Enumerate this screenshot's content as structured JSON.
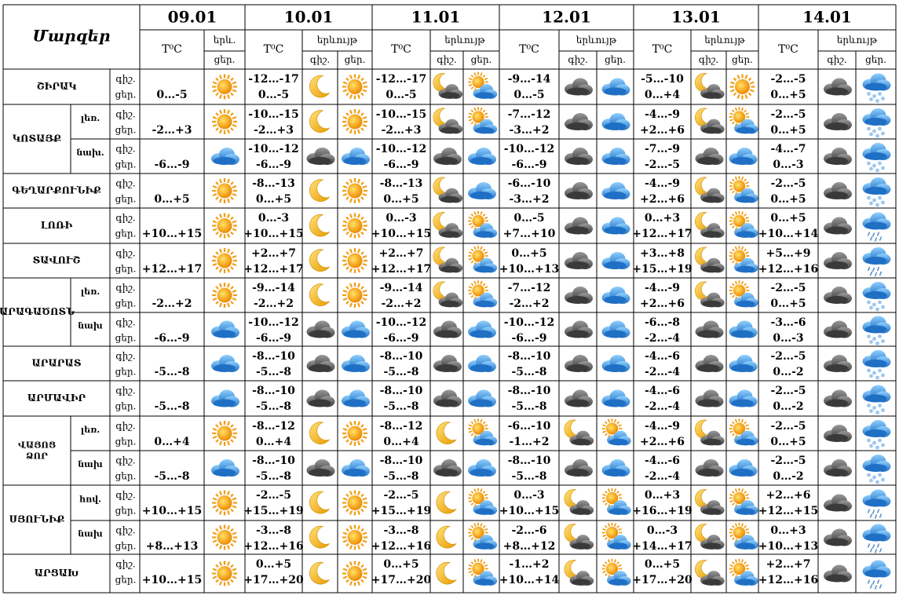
{
  "header": {
    "title": "Մարզեր",
    "dates": [
      "09.01",
      "10.01",
      "11.01",
      "12.01",
      "13.01",
      "14.01"
    ],
    "temp": "T⁰C",
    "phen_short": "երև.",
    "phen": "երևույթ",
    "night": "գիշ.",
    "day": "ցեր."
  },
  "regions": [
    {
      "name": "ՇԻՐԱԿ",
      "rows": [
        {
          "d09": "0…-5",
          "t": [
            [
              "-12…-17",
              "0…-5"
            ],
            [
              "-12…-17",
              "0…-5"
            ],
            [
              "-9…-14",
              "0…-5"
            ],
            [
              "-5…-10",
              "0…+4"
            ],
            [
              "-2…-5",
              "0…+5"
            ]
          ]
        }
      ]
    },
    {
      "name": "ԿՈՏԱՅՔ",
      "rows": [
        {
          "sub": "լեռ.",
          "d09": "-2…+3",
          "t": [
            [
              "-10…-15",
              "-2…+3"
            ],
            [
              "-10…-15",
              "-2…+3"
            ],
            [
              "-7…-12",
              "-3…+2"
            ],
            [
              "-4…-9",
              "+2…+6"
            ],
            [
              "-2…-5",
              "0…+5"
            ]
          ]
        },
        {
          "sub": "նախ.",
          "d09": "-6…-9",
          "t": [
            [
              "-10…-12",
              "-6…-9"
            ],
            [
              "-10…-12",
              "-6…-9"
            ],
            [
              "-10…-12",
              "-6…-9"
            ],
            [
              "-7…-9",
              "-2…-5"
            ],
            [
              "-4…-7",
              "0…-3"
            ]
          ]
        }
      ]
    },
    {
      "name": "ԳԵՂԱՐՔՈՒՆԻՔ",
      "rows": [
        {
          "d09": "0…+5",
          "t": [
            [
              "-8…-13",
              "0…+5"
            ],
            [
              "-8…-13",
              "0…+5"
            ],
            [
              "-6…-10",
              "-3…+2"
            ],
            [
              "-4…-9",
              "+2…+6"
            ],
            [
              "-2…-5",
              "0…+5"
            ]
          ]
        }
      ]
    },
    {
      "name": "ԼՈՌԻ",
      "rows": [
        {
          "d09": "+10…+15",
          "t": [
            [
              "0…-3",
              "+10…+15"
            ],
            [
              "0…-3",
              "+10…+15"
            ],
            [
              "0…-5",
              "+7…+10"
            ],
            [
              "0…+3",
              "+12…+17"
            ],
            [
              "0…+5",
              "+10…+14"
            ]
          ]
        }
      ]
    },
    {
      "name": "ՏԱՎՈՒՇ",
      "rows": [
        {
          "d09": "+12…+17",
          "t": [
            [
              "+2…+7",
              "+12…+17"
            ],
            [
              "+2…+7",
              "+12…+17"
            ],
            [
              "0…+5",
              "+10…+13"
            ],
            [
              "+3…+8",
              "+15…+19"
            ],
            [
              "+5…+9",
              "+12…+16"
            ]
          ]
        }
      ]
    },
    {
      "name": "ԱՐԱԳԱԾՈՏՆ",
      "rows": [
        {
          "sub": "լեռ.",
          "d09": "-2…+2",
          "t": [
            [
              "-9…-14",
              "-2…+2"
            ],
            [
              "-9…-14",
              "-2…+2"
            ],
            [
              "-7…-12",
              "-2…+2"
            ],
            [
              "-4…-9",
              "+2…+6"
            ],
            [
              "-2…-5",
              "0…+5"
            ]
          ]
        },
        {
          "sub": "նախ",
          "d09": "-6…-9",
          "t": [
            [
              "-10…-12",
              "-6…-9"
            ],
            [
              "-10…-12",
              "-6…-9"
            ],
            [
              "-10…-12",
              "-6…-9"
            ],
            [
              "-6…-8",
              "-2…-4"
            ],
            [
              "-3…-6",
              "0…-3"
            ]
          ]
        }
      ]
    },
    {
      "name": "ԱՐԱՐԱՏ",
      "rows": [
        {
          "d09": "-5…-8",
          "t": [
            [
              "-8…-10",
              "-5…-8"
            ],
            [
              "-8…-10",
              "-5…-8"
            ],
            [
              "-8…-10",
              "-5…-8"
            ],
            [
              "-4…-6",
              "-2…-4"
            ],
            [
              "-2…-5",
              "0…-2"
            ]
          ]
        }
      ]
    },
    {
      "name": "ԱՐՄԱՎԻՐ",
      "rows": [
        {
          "d09": "-5…-8",
          "t": [
            [
              "-8…-10",
              "-5…-8"
            ],
            [
              "-8…-10",
              "-5…-8"
            ],
            [
              "-8…-10",
              "-5…-8"
            ],
            [
              "-4…-6",
              "-2…-4"
            ],
            [
              "-2…-5",
              "0…-2"
            ]
          ]
        }
      ]
    },
    {
      "name": "ՎԱՅՈՑ ՁՈՐ",
      "rows": [
        {
          "sub": "լեռ.",
          "d09": "0…+4",
          "t": [
            [
              "-8…-12",
              "0…+4"
            ],
            [
              "-8…-12",
              "0…+4"
            ],
            [
              "-6…-10",
              "-1…+2"
            ],
            [
              "-4…-9",
              "+2…+6"
            ],
            [
              "-2…-5",
              "0…+5"
            ]
          ]
        },
        {
          "sub": "նախ",
          "d09": "-5…-8",
          "t": [
            [
              "-8…-10",
              "-5…-8"
            ],
            [
              "-8…-10",
              "-5…-8"
            ],
            [
              "-8…-10",
              "-5…-8"
            ],
            [
              "-4…-6",
              "-2…-4"
            ],
            [
              "-2…-5",
              "0…-2"
            ]
          ]
        }
      ]
    },
    {
      "name": "ՍՅՈՒՆԻՔ",
      "rows": [
        {
          "sub": "հով.",
          "d09": "+10…+15",
          "t": [
            [
              "-2…-5",
              "+15…+19"
            ],
            [
              "-2…-5",
              "+15…+19"
            ],
            [
              "0…-3",
              "+10…+15"
            ],
            [
              "0…+3",
              "+16…+19"
            ],
            [
              "+2…+6",
              "+12…+15"
            ]
          ]
        },
        {
          "sub": "նախ",
          "d09": "+8…+13",
          "t": [
            [
              "-3…-8",
              "+12…+16"
            ],
            [
              "-3…-8",
              "+12…+16"
            ],
            [
              "-2…-6",
              "+8…+12"
            ],
            [
              "0…-3",
              "+14…+17"
            ],
            [
              "0…+3",
              "+10…+13"
            ]
          ]
        }
      ]
    },
    {
      "name": "ԱՐՑԱԽ",
      "rows": [
        {
          "d09": "+10…+15",
          "t": [
            [
              "0…+5",
              "+17…+20"
            ],
            [
              "0…+5",
              "+17…+20"
            ],
            [
              "-1…+2",
              "+10…+14"
            ],
            [
              "0…+5",
              "+17…+20"
            ],
            [
              "+2…+7",
              "+12…+16"
            ]
          ]
        }
      ]
    }
  ]
}
